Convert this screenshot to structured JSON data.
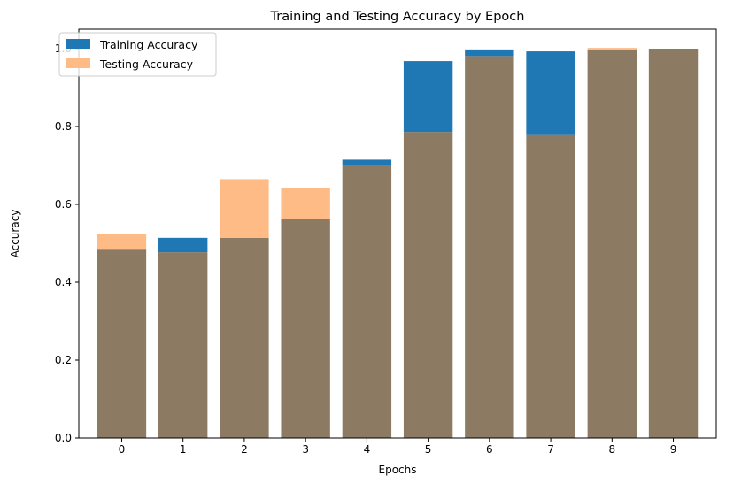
{
  "chart_data": {
    "type": "bar",
    "title": "Training and Testing Accuracy by Epoch",
    "xlabel": "Epochs",
    "ylabel": "Accuracy",
    "categories": [
      "0",
      "1",
      "2",
      "3",
      "4",
      "5",
      "6",
      "7",
      "8",
      "9"
    ],
    "yticks": [
      "0.0",
      "0.2",
      "0.4",
      "0.6",
      "0.8",
      "1.0"
    ],
    "ylim": [
      0,
      1.05
    ],
    "legend_position": "top-left",
    "grid": false,
    "overlay_color": "#8c7b62",
    "series": [
      {
        "name": "Training Accuracy",
        "color": "#1f77b4",
        "values": [
          0.486,
          0.514,
          0.514,
          0.563,
          0.715,
          0.968,
          0.998,
          0.993,
          0.996,
          1.0
        ]
      },
      {
        "name": "Testing Accuracy",
        "color": "#ffbb85",
        "values": [
          0.523,
          0.477,
          0.665,
          0.643,
          0.702,
          0.786,
          0.981,
          0.778,
          1.002,
          1.0
        ]
      }
    ]
  }
}
